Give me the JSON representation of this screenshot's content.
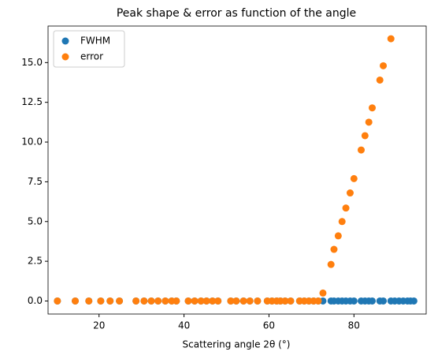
{
  "chart_data": {
    "type": "scatter",
    "title": "Peak shape & error as function of the angle",
    "xlabel": "Scattering angle 2θ (°)",
    "legend": "upper left",
    "xlim": [
      8,
      97
    ],
    "ylim": [
      -0.82,
      17.3
    ],
    "xticks": [
      20,
      40,
      60,
      80
    ],
    "yticks": [
      {
        "value": 0,
        "label": "0.0"
      },
      2.5,
      {
        "value": 5,
        "label": "5.0"
      },
      7.5,
      {
        "value": 10,
        "label": "10.0"
      },
      12.5,
      {
        "value": 15,
        "label": "15.0"
      }
    ],
    "series": [
      {
        "name": "FWHM",
        "color": "#1f77b4",
        "x": [
          10.2,
          14.4,
          17.6,
          20.4,
          22.6,
          24.8,
          28.7,
          30.6,
          32.3,
          33.9,
          35.6,
          37.1,
          38.2,
          41.0,
          42.5,
          44.0,
          45.3,
          46.7,
          48.0,
          51.0,
          52.3,
          54.0,
          55.5,
          57.3,
          59.6,
          60.7,
          61.8,
          62.7,
          63.8,
          65.1,
          67.2,
          68.3,
          69.4,
          70.5,
          71.6,
          72.7,
          74.6,
          75.3,
          76.3,
          77.2,
          78.1,
          79.1,
          80.0,
          81.7,
          82.6,
          83.5,
          84.3,
          86.1,
          86.9,
          88.7,
          89.6,
          90.6,
          91.6,
          92.6,
          93.3,
          94.1
        ],
        "values": [
          0,
          0,
          0,
          0,
          0,
          0,
          0,
          0,
          0,
          0,
          0,
          0,
          0,
          0,
          0,
          0,
          0,
          0,
          0,
          0,
          0,
          0,
          0,
          0,
          0,
          0,
          0,
          0,
          0,
          0,
          0,
          0,
          0,
          0,
          0,
          0,
          0,
          0,
          0,
          0,
          0,
          0,
          0,
          0,
          0,
          0,
          0,
          0,
          0,
          0,
          0,
          0,
          0,
          0,
          0,
          0
        ]
      },
      {
        "name": "error",
        "color": "#ff7f0e",
        "x": [
          10.2,
          14.4,
          17.6,
          20.4,
          22.6,
          24.8,
          28.7,
          30.6,
          32.3,
          33.9,
          35.6,
          37.1,
          38.2,
          41.0,
          42.5,
          44.0,
          45.3,
          46.7,
          48.0,
          51.0,
          52.3,
          54.0,
          55.5,
          57.3,
          59.6,
          60.7,
          61.8,
          62.7,
          63.8,
          65.1,
          67.2,
          68.3,
          69.4,
          70.5,
          71.6,
          72.7,
          74.6,
          75.3,
          76.3,
          77.2,
          78.1,
          79.1,
          80.0,
          81.7,
          82.6,
          83.5,
          84.3,
          86.1,
          86.9,
          88.7
        ],
        "values": [
          0,
          0,
          0,
          0,
          0,
          0,
          0,
          0,
          0,
          0,
          0,
          0,
          0,
          0,
          0,
          0,
          0,
          0,
          0,
          0,
          0,
          0,
          0,
          0,
          0,
          0,
          0,
          0,
          0,
          0,
          0,
          0,
          0,
          0,
          0,
          0.5,
          2.3,
          3.25,
          4.1,
          5.0,
          5.85,
          6.8,
          7.7,
          9.5,
          10.4,
          11.25,
          12.15,
          13.9,
          14.8,
          16.5
        ]
      }
    ]
  }
}
